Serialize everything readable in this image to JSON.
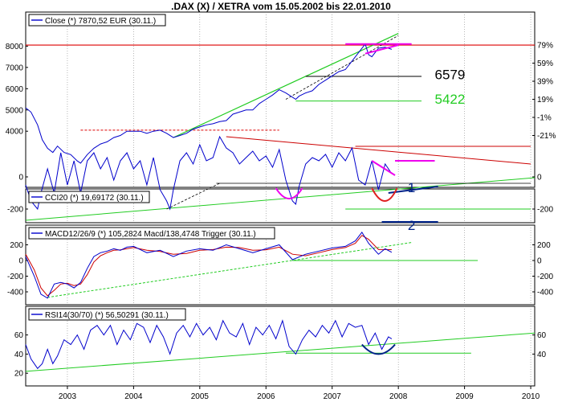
{
  "title": ".DAX (X) / XETRA vom 15.05.2002 bis 22.01.2010",
  "colors": {
    "price": "#0000cc",
    "trend_green": "#22cc22",
    "resistance_red": "#dd0000",
    "magenta": "#ee00ee",
    "red_line": "#cc0000",
    "black": "#000000",
    "blue_dark": "#002288"
  },
  "x_axis": {
    "labels": [
      "2003",
      "2004",
      "2005",
      "2006",
      "2007",
      "2008",
      "2009",
      "2010"
    ]
  },
  "chart_data": [
    {
      "type": "line",
      "name": "price",
      "legend": "Close (*) 7870,52 EUR (30.11.)",
      "left_ticks": [
        "8000",
        "7000",
        "6000",
        "5000",
        "4000"
      ],
      "right_ticks": [
        "79%",
        "59%",
        "39%",
        "19%",
        "-1%",
        "-21%"
      ],
      "annotations": [
        "6579",
        "5422"
      ],
      "series": [
        {
          "x": [
            2002.37,
            2002.45,
            2002.55,
            2002.62,
            2002.7,
            2002.78,
            2002.85,
            2002.95,
            2003.05,
            2003.15,
            2003.2,
            2003.3,
            2003.4,
            2003.5,
            2003.6,
            2003.7,
            2003.8,
            2003.9,
            2004.0,
            2004.1,
            2004.2,
            2004.3,
            2004.4,
            2004.5,
            2004.6,
            2004.7,
            2004.8,
            2004.9,
            2005.0,
            2005.1,
            2005.2,
            2005.3,
            2005.4,
            2005.5,
            2005.6,
            2005.7,
            2005.8,
            2005.9,
            2006.0,
            2006.1,
            2006.2,
            2006.3,
            2006.4,
            2006.45,
            2006.5,
            2006.6,
            2006.7,
            2006.8,
            2006.9,
            2007.0,
            2007.1,
            2007.2,
            2007.3,
            2007.4,
            2007.5,
            2007.55,
            2007.6,
            2007.7,
            2007.8,
            2007.9
          ],
          "values": [
            5100,
            4900,
            4300,
            3600,
            3200,
            3000,
            3300,
            3000,
            2900,
            2600,
            2500,
            2900,
            3200,
            3400,
            3500,
            3700,
            3800,
            4000,
            4000,
            4000,
            3900,
            4000,
            4050,
            3900,
            3700,
            3800,
            3900,
            4100,
            4200,
            4300,
            4350,
            4450,
            4500,
            4800,
            4900,
            5000,
            5000,
            5300,
            5500,
            5700,
            5950,
            5800,
            5600,
            5500,
            5650,
            5800,
            5900,
            6200,
            6400,
            6600,
            6800,
            6900,
            7300,
            7700,
            8100,
            7600,
            7500,
            7900,
            7950,
            7850
          ]
        }
      ]
    },
    {
      "type": "line",
      "name": "CCI20",
      "legend": "CCI20 (*) 19,69172 (30.11.)",
      "left_ticks": [
        "0",
        "-200"
      ],
      "right_ticks": [
        "0",
        "-200"
      ],
      "annotations": [
        "1",
        "2"
      ],
      "series": [
        {
          "x": [
            2002.37,
            2002.45,
            2002.55,
            2002.6,
            2002.7,
            2002.8,
            2002.9,
            2003.0,
            2003.1,
            2003.2,
            2003.3,
            2003.4,
            2003.5,
            2003.6,
            2003.7,
            2003.8,
            2003.9,
            2004.0,
            2004.1,
            2004.2,
            2004.3,
            2004.4,
            2004.5,
            2004.55,
            2004.6,
            2004.7,
            2004.8,
            2004.9,
            2005.0,
            2005.1,
            2005.2,
            2005.3,
            2005.4,
            2005.5,
            2005.6,
            2005.7,
            2005.8,
            2005.9,
            2006.0,
            2006.1,
            2006.2,
            2006.3,
            2006.4,
            2006.45,
            2006.5,
            2006.6,
            2006.7,
            2006.8,
            2006.9,
            2007.0,
            2007.1,
            2007.2,
            2007.3,
            2007.4,
            2007.5,
            2007.6,
            2007.7,
            2007.8,
            2007.9
          ],
          "values": [
            -50,
            -150,
            -200,
            -100,
            50,
            -100,
            150,
            -50,
            100,
            -100,
            100,
            150,
            50,
            120,
            -20,
            100,
            150,
            50,
            100,
            -50,
            120,
            -80,
            -150,
            -200,
            -80,
            100,
            150,
            80,
            200,
            100,
            120,
            250,
            180,
            150,
            80,
            120,
            160,
            100,
            130,
            60,
            170,
            -20,
            -150,
            -170,
            -60,
            80,
            120,
            100,
            140,
            60,
            150,
            100,
            180,
            -20,
            -50,
            100,
            -80,
            80,
            20
          ]
        }
      ]
    },
    {
      "type": "line",
      "name": "MACD",
      "legend": "MACD12/26/9 (*) 105,2824 Macd/138,4748 Trigger (30.11.)",
      "left_ticks": [
        "200",
        "0",
        "-200",
        "-400"
      ],
      "right_ticks": [
        "200",
        "0",
        "-200",
        "-400"
      ],
      "series": [
        {
          "x": [
            2002.37,
            2002.5,
            2002.6,
            2002.7,
            2002.8,
            2002.9,
            2003.0,
            2003.1,
            2003.2,
            2003.3,
            2003.4,
            2003.5,
            2003.6,
            2003.7,
            2003.8,
            2003.9,
            2004.0,
            2004.2,
            2004.4,
            2004.6,
            2004.8,
            2005.0,
            2005.2,
            2005.4,
            2005.6,
            2005.8,
            2006.0,
            2006.2,
            2006.4,
            2006.6,
            2006.8,
            2007.0,
            2007.2,
            2007.35,
            2007.45,
            2007.55,
            2007.7,
            2007.8,
            2007.9
          ],
          "values": [
            50,
            -200,
            -430,
            -480,
            -300,
            -280,
            -300,
            -350,
            -280,
            -100,
            50,
            100,
            120,
            150,
            130,
            170,
            180,
            100,
            130,
            50,
            120,
            150,
            130,
            200,
            150,
            100,
            150,
            200,
            10,
            80,
            120,
            160,
            180,
            250,
            360,
            220,
            80,
            150,
            105
          ]
        },
        {
          "x": [
            2002.37,
            2002.5,
            2002.6,
            2002.7,
            2002.8,
            2002.9,
            2003.0,
            2003.1,
            2003.2,
            2003.3,
            2003.4,
            2003.5,
            2003.6,
            2003.7,
            2003.8,
            2003.9,
            2004.0,
            2004.2,
            2004.4,
            2004.6,
            2004.8,
            2005.0,
            2005.2,
            2005.4,
            2005.6,
            2005.8,
            2006.0,
            2006.2,
            2006.4,
            2006.6,
            2006.8,
            2007.0,
            2007.2,
            2007.35,
            2007.45,
            2007.55,
            2007.7,
            2007.8,
            2007.9
          ],
          "values": [
            80,
            -120,
            -350,
            -450,
            -380,
            -300,
            -290,
            -320,
            -300,
            -180,
            -20,
            60,
            100,
            130,
            135,
            150,
            165,
            130,
            115,
            80,
            90,
            130,
            140,
            170,
            165,
            130,
            135,
            170,
            80,
            60,
            100,
            140,
            165,
            220,
            320,
            270,
            140,
            140,
            138
          ]
        }
      ]
    },
    {
      "type": "line",
      "name": "RSI14",
      "legend": "RSI14(30/70) (*) 56,50291 (30.11.)",
      "left_ticks": [
        "60",
        "40",
        "20"
      ],
      "right_ticks": [
        "60",
        "40"
      ],
      "series": [
        {
          "x": [
            2002.37,
            2002.45,
            2002.55,
            2002.62,
            2002.7,
            2002.78,
            2002.85,
            2002.95,
            2003.05,
            2003.15,
            2003.25,
            2003.35,
            2003.45,
            2003.55,
            2003.65,
            2003.75,
            2003.85,
            2003.95,
            2004.05,
            2004.15,
            2004.25,
            2004.35,
            2004.45,
            2004.55,
            2004.65,
            2004.75,
            2004.85,
            2004.95,
            2005.05,
            2005.15,
            2005.25,
            2005.35,
            2005.45,
            2005.55,
            2005.65,
            2005.75,
            2005.85,
            2005.95,
            2006.05,
            2006.15,
            2006.25,
            2006.35,
            2006.45,
            2006.55,
            2006.65,
            2006.75,
            2006.85,
            2006.95,
            2007.05,
            2007.15,
            2007.25,
            2007.35,
            2007.45,
            2007.55,
            2007.65,
            2007.75,
            2007.85,
            2007.9
          ],
          "values": [
            50,
            35,
            25,
            30,
            45,
            30,
            38,
            55,
            50,
            60,
            45,
            65,
            70,
            60,
            70,
            50,
            65,
            55,
            72,
            68,
            52,
            70,
            58,
            40,
            62,
            70,
            58,
            72,
            60,
            68,
            55,
            75,
            62,
            58,
            72,
            50,
            68,
            60,
            70,
            56,
            75,
            48,
            40,
            55,
            65,
            58,
            70,
            62,
            75,
            58,
            72,
            68,
            70,
            50,
            62,
            45,
            58,
            56
          ]
        }
      ]
    }
  ]
}
